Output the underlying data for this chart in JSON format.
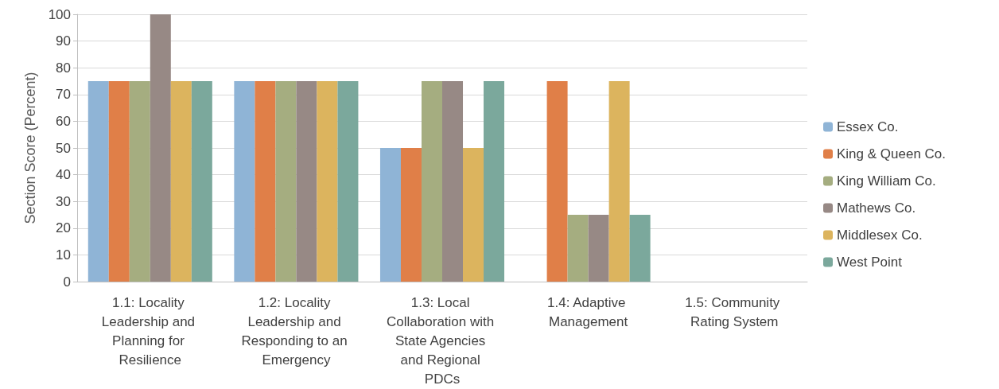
{
  "chart_data": {
    "type": "bar",
    "ylabel": "Section Score (Percent)",
    "categories": [
      "1.1: Locality Leadership and Planning for Resilience",
      "1.2: Locality Leadership and Responding to an Emergency",
      "1.3: Local Collaboration with State Agencies and Regional PDCs",
      "1.4: Adaptive Management",
      "1.5: Community Rating System"
    ],
    "series": [
      {
        "name": "Essex Co.",
        "color": "#8fb4d6",
        "values": [
          75,
          75,
          50,
          0,
          0
        ]
      },
      {
        "name": "King & Queen Co.",
        "color": "#e07f48",
        "values": [
          75,
          75,
          50,
          75,
          0
        ]
      },
      {
        "name": "King William Co.",
        "color": "#a5ad80",
        "values": [
          75,
          75,
          75,
          25,
          0
        ]
      },
      {
        "name": "Mathews Co.",
        "color": "#978985",
        "values": [
          100,
          75,
          75,
          25,
          0
        ]
      },
      {
        "name": "Middlesex Co.",
        "color": "#dcb45e",
        "values": [
          75,
          75,
          50,
          75,
          0
        ]
      },
      {
        "name": "West Point",
        "color": "#7ba89c",
        "values": [
          75,
          75,
          75,
          25,
          0
        ]
      }
    ],
    "ylim": [
      0,
      100
    ],
    "yticks": [
      0,
      10,
      20,
      30,
      40,
      50,
      60,
      70,
      80,
      90,
      100
    ],
    "grid": "y",
    "legend": "right"
  }
}
